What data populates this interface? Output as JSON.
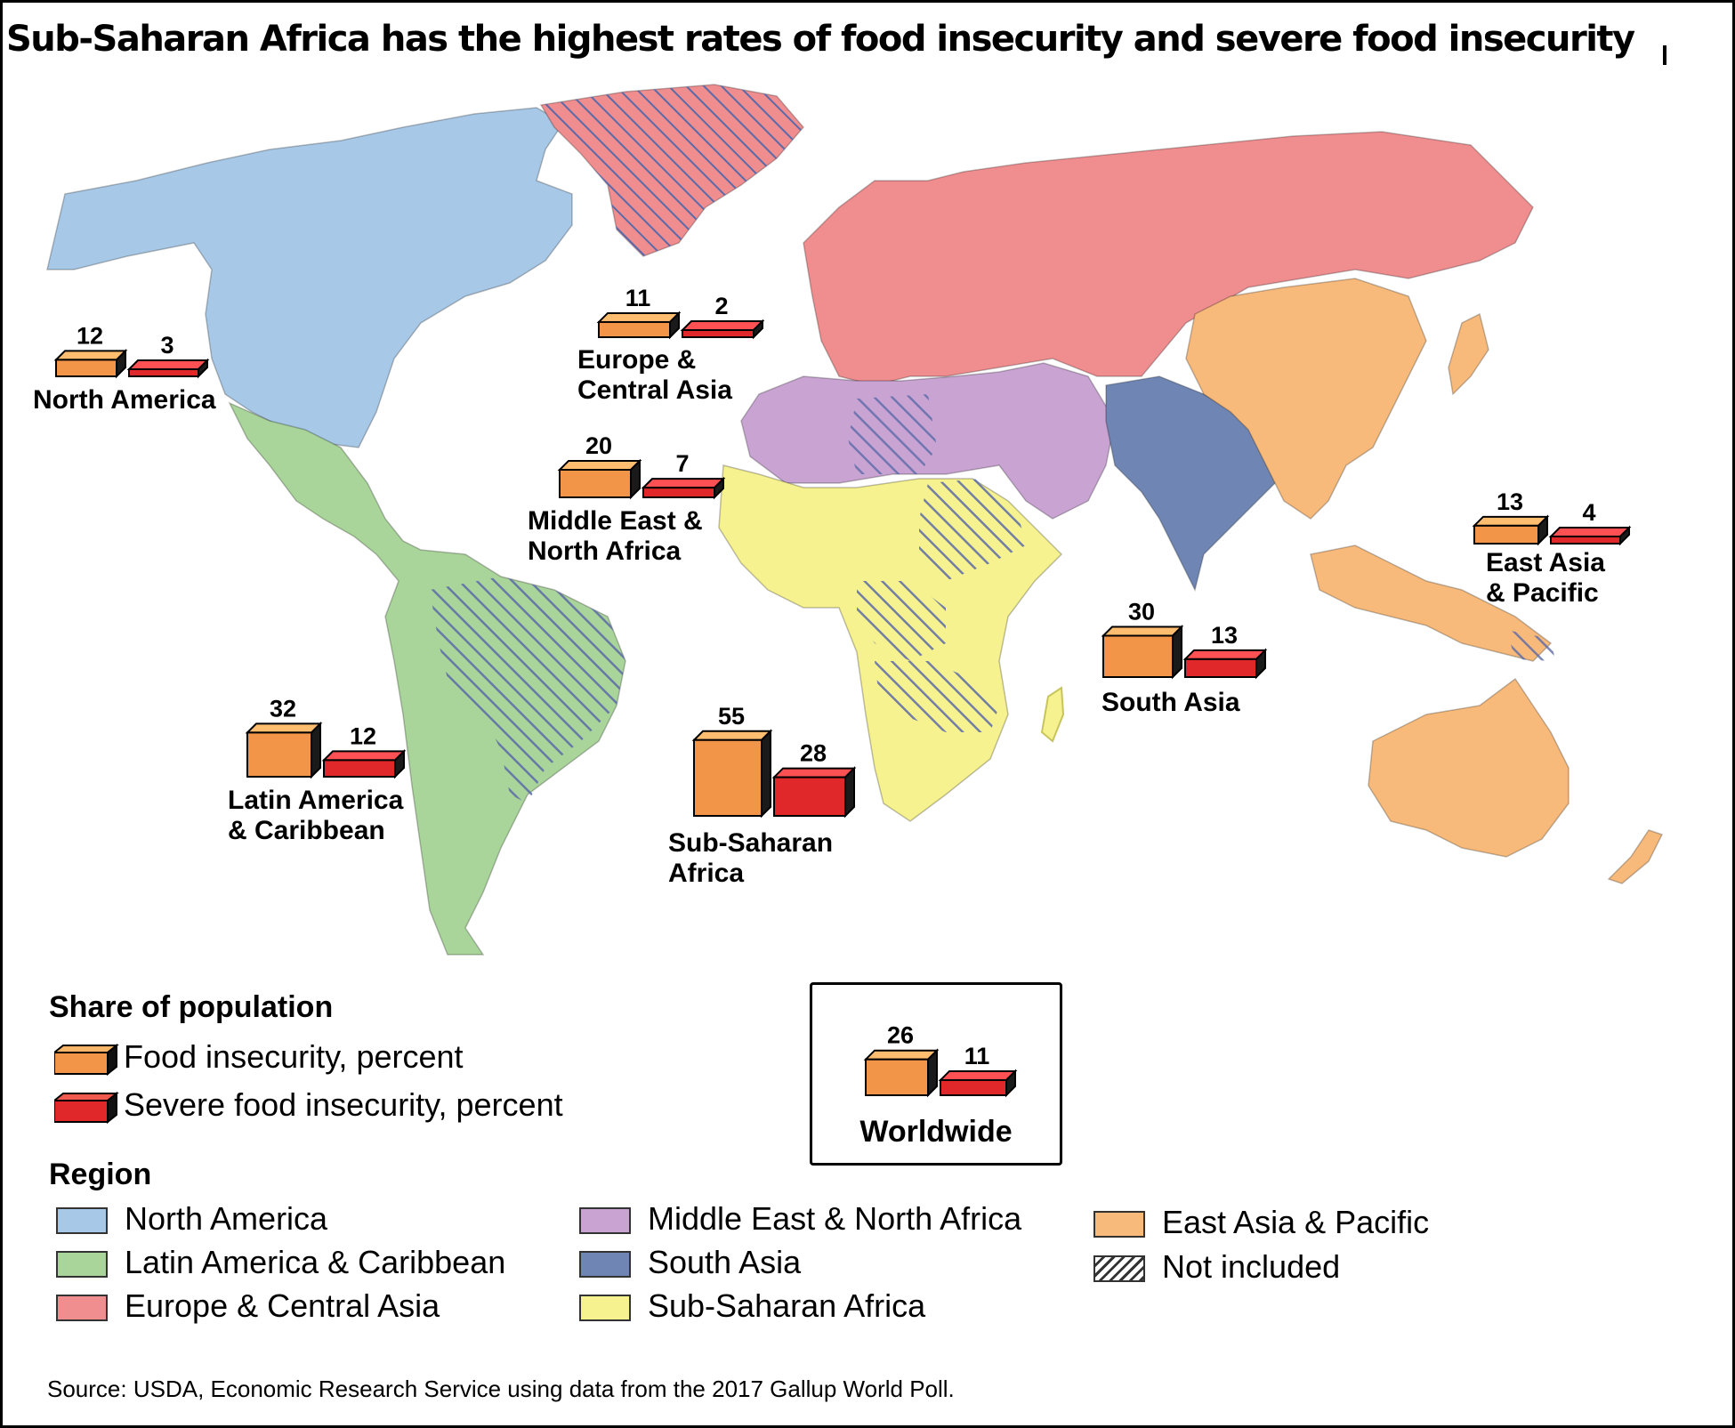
{
  "title": "Sub-Saharan Africa has the highest rates of food insecurity and severe food insecurity",
  "colors": {
    "north_america": "#a7c8e6",
    "latin_america": "#a9d49a",
    "europe_central_asia": "#ef8d8f",
    "middle_east": "#c9a4d3",
    "south_asia": "#6f86b4",
    "sub_saharan": "#f6f28f",
    "east_asia": "#f8ba7b",
    "food_insecurity_bar": "#f39548",
    "severe_bar": "#e0282b",
    "not_included_hatch": "#5b6aa8"
  },
  "chart_data": {
    "type": "bar",
    "units": "percent",
    "series": [
      {
        "name": "Food insecurity, percent",
        "values": [
          12,
          32,
          11,
          20,
          55,
          30,
          13,
          26
        ]
      },
      {
        "name": "Severe food insecurity, percent",
        "values": [
          3,
          12,
          2,
          7,
          28,
          13,
          4,
          11
        ]
      }
    ],
    "categories": [
      "North America",
      "Latin America & Caribbean",
      "Europe & Central Asia",
      "Middle East & North Africa",
      "Sub-Saharan Africa",
      "South Asia",
      "East Asia & Pacific",
      "Worldwide"
    ],
    "region_labels": [
      {
        "id": "north_america",
        "label": "North America"
      },
      {
        "id": "latin_america",
        "label": "Latin America\n& Caribbean"
      },
      {
        "id": "europe_central_asia",
        "label": "Europe &\nCentral Asia"
      },
      {
        "id": "middle_east",
        "label": "Middle East &\nNorth Africa"
      },
      {
        "id": "sub_saharan",
        "label": "Sub-Saharan\nAfrica"
      },
      {
        "id": "south_asia",
        "label": "South Asia"
      },
      {
        "id": "east_asia",
        "label": "East Asia\n& Pacific"
      },
      {
        "id": "worldwide",
        "label": "Worldwide"
      }
    ]
  },
  "legend": {
    "share_heading": "Share of population",
    "share_items": [
      "Food insecurity, percent",
      "Severe food insecurity, percent"
    ],
    "region_heading": "Region",
    "region_items": [
      "North America",
      "Latin America & Caribbean",
      "Europe & Central Asia",
      "Middle East & North Africa",
      "South Asia",
      "Sub-Saharan Africa",
      "East Asia & Pacific",
      "Not included"
    ]
  },
  "source": "Source: USDA, Economic Research Service using data from the 2017 Gallup World Poll."
}
